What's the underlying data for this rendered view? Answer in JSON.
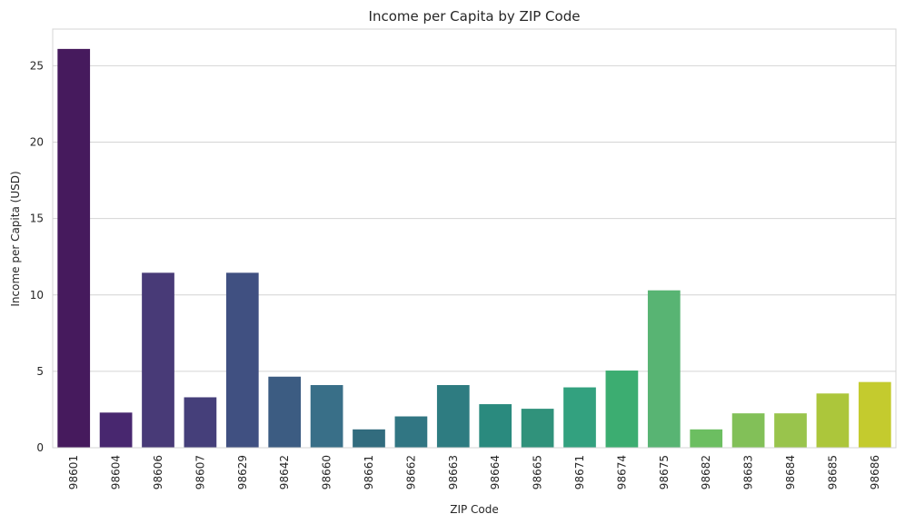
{
  "chart_data": {
    "type": "bar",
    "title": "Income per Capita by ZIP Code",
    "xlabel": "ZIP Code",
    "ylabel": "Income per Capita (USD)",
    "categories": [
      "98601",
      "98604",
      "98606",
      "98607",
      "98629",
      "98642",
      "98660",
      "98661",
      "98662",
      "98663",
      "98664",
      "98665",
      "98671",
      "98674",
      "98675",
      "98682",
      "98683",
      "98684",
      "98685",
      "98686"
    ],
    "values": [
      26.1,
      2.3,
      11.45,
      3.3,
      11.45,
      4.65,
      4.1,
      1.2,
      2.05,
      4.1,
      2.85,
      2.55,
      3.95,
      5.05,
      10.3,
      1.2,
      2.25,
      2.25,
      3.55,
      4.3
    ],
    "colors": [
      "#461A5D",
      "#48276F",
      "#483A77",
      "#453F7A",
      "#405081",
      "#3C5C82",
      "#396F88",
      "#326C7E",
      "#317683",
      "#2E7C81",
      "#2A8A7E",
      "#30927B",
      "#33A17F",
      "#3CAD71",
      "#58B473",
      "#6CBE61",
      "#82C058",
      "#99C44C",
      "#ACC63B",
      "#C4CB2E"
    ],
    "yticks": [
      0,
      5,
      10,
      15,
      20,
      25
    ],
    "ylim": [
      0,
      27.4
    ],
    "grid": true,
    "legend": "none"
  }
}
